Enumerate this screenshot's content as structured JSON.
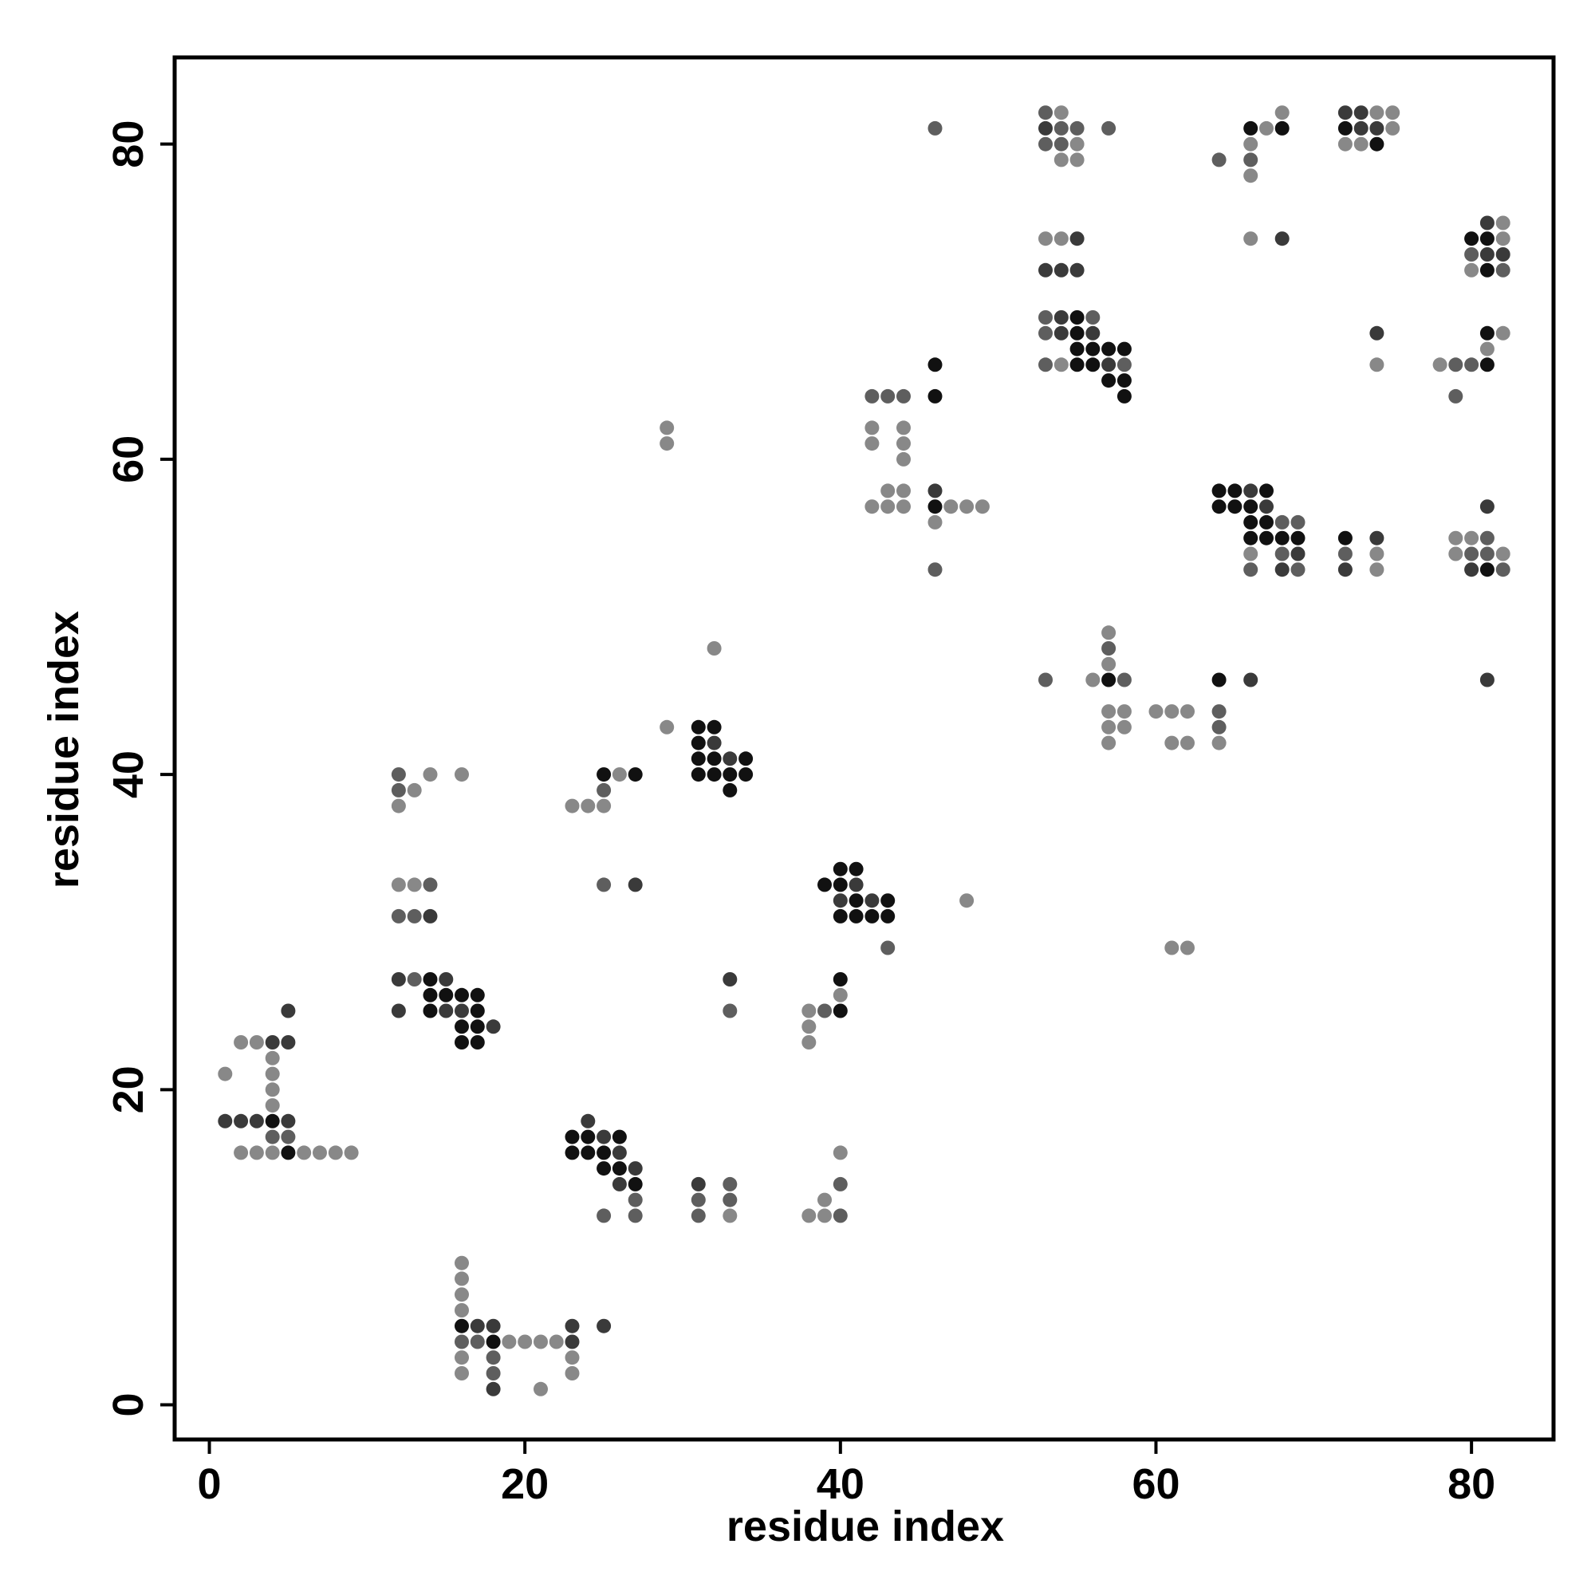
{
  "chart_data": {
    "type": "scatter",
    "title": "",
    "xlabel": "residue index",
    "ylabel": "residue index",
    "xlim": [
      -2.2,
      85.2
    ],
    "ylim": [
      -2.2,
      85.5
    ],
    "xticks": [
      0,
      20,
      40,
      60,
      80
    ],
    "yticks": [
      0,
      20,
      40,
      60,
      80
    ],
    "grid": false,
    "legend": "none",
    "colors": {
      "very_dark": "#111111",
      "dark": "#3a3a3a",
      "medium": "#5e5e5e",
      "light": "#888888"
    },
    "points": [
      [
        1,
        21,
        3
      ],
      [
        1,
        18,
        1
      ],
      [
        2,
        23,
        3
      ],
      [
        2,
        18,
        1
      ],
      [
        2,
        16,
        3
      ],
      [
        3,
        23,
        3
      ],
      [
        3,
        18,
        1
      ],
      [
        3,
        16,
        3
      ],
      [
        4,
        23,
        1
      ],
      [
        4,
        22,
        3
      ],
      [
        4,
        21,
        3
      ],
      [
        4,
        20,
        3
      ],
      [
        4,
        19,
        3
      ],
      [
        4,
        18,
        0
      ],
      [
        4,
        17,
        2
      ],
      [
        4,
        16,
        3
      ],
      [
        5,
        25,
        1
      ],
      [
        5,
        23,
        1
      ],
      [
        5,
        18,
        1
      ],
      [
        5,
        17,
        2
      ],
      [
        5,
        16,
        0
      ],
      [
        6,
        16,
        3
      ],
      [
        7,
        16,
        3
      ],
      [
        8,
        16,
        3
      ],
      [
        9,
        16,
        3
      ],
      [
        12,
        40,
        2
      ],
      [
        12,
        39,
        2
      ],
      [
        12,
        38,
        3
      ],
      [
        12,
        33,
        3
      ],
      [
        12,
        31,
        2
      ],
      [
        12,
        27,
        1
      ],
      [
        12,
        25,
        1
      ],
      [
        13,
        39,
        3
      ],
      [
        13,
        33,
        3
      ],
      [
        13,
        31,
        2
      ],
      [
        13,
        27,
        2
      ],
      [
        14,
        40,
        3
      ],
      [
        14,
        33,
        2
      ],
      [
        14,
        31,
        1
      ],
      [
        14,
        27,
        0
      ],
      [
        14,
        26,
        0
      ],
      [
        14,
        25,
        0
      ],
      [
        15,
        27,
        1
      ],
      [
        15,
        26,
        0
      ],
      [
        15,
        25,
        1
      ],
      [
        16,
        40,
        3
      ],
      [
        16,
        26,
        0
      ],
      [
        16,
        25,
        1
      ],
      [
        16,
        24,
        0
      ],
      [
        16,
        23,
        0
      ],
      [
        16,
        9,
        3
      ],
      [
        16,
        8,
        3
      ],
      [
        16,
        7,
        3
      ],
      [
        16,
        6,
        3
      ],
      [
        16,
        5,
        0
      ],
      [
        16,
        4,
        2
      ],
      [
        16,
        3,
        3
      ],
      [
        16,
        2,
        3
      ],
      [
        17,
        26,
        0
      ],
      [
        17,
        25,
        0
      ],
      [
        17,
        24,
        0
      ],
      [
        17,
        23,
        0
      ],
      [
        17,
        5,
        1
      ],
      [
        17,
        4,
        2
      ],
      [
        18,
        24,
        1
      ],
      [
        18,
        5,
        1
      ],
      [
        18,
        4,
        0
      ],
      [
        18,
        3,
        2
      ],
      [
        18,
        2,
        2
      ],
      [
        18,
        1,
        1
      ],
      [
        19,
        4,
        3
      ],
      [
        20,
        4,
        3
      ],
      [
        21,
        4,
        3
      ],
      [
        21,
        1,
        3
      ],
      [
        22,
        4,
        3
      ],
      [
        23,
        38,
        3
      ],
      [
        23,
        17,
        0
      ],
      [
        23,
        16,
        0
      ],
      [
        23,
        5,
        1
      ],
      [
        23,
        4,
        1
      ],
      [
        23,
        3,
        3
      ],
      [
        23,
        2,
        3
      ],
      [
        24,
        38,
        3
      ],
      [
        24,
        18,
        1
      ],
      [
        24,
        17,
        0
      ],
      [
        24,
        16,
        0
      ],
      [
        25,
        40,
        0
      ],
      [
        25,
        39,
        2
      ],
      [
        25,
        38,
        3
      ],
      [
        25,
        33,
        2
      ],
      [
        25,
        17,
        1
      ],
      [
        25,
        16,
        0
      ],
      [
        25,
        15,
        0
      ],
      [
        25,
        12,
        2
      ],
      [
        25,
        5,
        1
      ],
      [
        26,
        40,
        3
      ],
      [
        26,
        17,
        0
      ],
      [
        26,
        16,
        1
      ],
      [
        26,
        15,
        0
      ],
      [
        26,
        14,
        1
      ],
      [
        27,
        40,
        0
      ],
      [
        27,
        33,
        1
      ],
      [
        27,
        15,
        1
      ],
      [
        27,
        14,
        0
      ],
      [
        27,
        13,
        2
      ],
      [
        27,
        12,
        2
      ],
      [
        29,
        62,
        3
      ],
      [
        29,
        61,
        3
      ],
      [
        29,
        43,
        3
      ],
      [
        31,
        43,
        0
      ],
      [
        31,
        42,
        0
      ],
      [
        31,
        41,
        0
      ],
      [
        31,
        40,
        0
      ],
      [
        31,
        14,
        1
      ],
      [
        31,
        13,
        2
      ],
      [
        31,
        12,
        2
      ],
      [
        32,
        48,
        3
      ],
      [
        32,
        43,
        0
      ],
      [
        32,
        42,
        1
      ],
      [
        32,
        41,
        0
      ],
      [
        32,
        40,
        0
      ],
      [
        33,
        41,
        1
      ],
      [
        33,
        40,
        0
      ],
      [
        33,
        39,
        0
      ],
      [
        33,
        27,
        1
      ],
      [
        33,
        25,
        2
      ],
      [
        33,
        14,
        2
      ],
      [
        33,
        13,
        2
      ],
      [
        33,
        12,
        3
      ],
      [
        34,
        41,
        0
      ],
      [
        34,
        40,
        0
      ],
      [
        38,
        25,
        3
      ],
      [
        38,
        24,
        3
      ],
      [
        38,
        23,
        3
      ],
      [
        38,
        12,
        3
      ],
      [
        39,
        33,
        0
      ],
      [
        39,
        25,
        2
      ],
      [
        39,
        13,
        3
      ],
      [
        39,
        12,
        3
      ],
      [
        40,
        34,
        0
      ],
      [
        40,
        33,
        0
      ],
      [
        40,
        32,
        1
      ],
      [
        40,
        31,
        0
      ],
      [
        40,
        27,
        0
      ],
      [
        40,
        26,
        3
      ],
      [
        40,
        25,
        0
      ],
      [
        40,
        16,
        3
      ],
      [
        40,
        14,
        2
      ],
      [
        40,
        12,
        2
      ],
      [
        41,
        34,
        0
      ],
      [
        41,
        33,
        1
      ],
      [
        41,
        32,
        0
      ],
      [
        41,
        31,
        0
      ],
      [
        42,
        64,
        2
      ],
      [
        42,
        62,
        3
      ],
      [
        42,
        61,
        3
      ],
      [
        42,
        57,
        3
      ],
      [
        42,
        32,
        1
      ],
      [
        42,
        31,
        0
      ],
      [
        43,
        64,
        2
      ],
      [
        43,
        58,
        3
      ],
      [
        43,
        57,
        3
      ],
      [
        43,
        32,
        0
      ],
      [
        43,
        31,
        0
      ],
      [
        43,
        29,
        2
      ],
      [
        44,
        64,
        2
      ],
      [
        44,
        62,
        3
      ],
      [
        44,
        61,
        3
      ],
      [
        44,
        60,
        3
      ],
      [
        44,
        58,
        3
      ],
      [
        44,
        57,
        3
      ],
      [
        46,
        81,
        2
      ],
      [
        46,
        66,
        0
      ],
      [
        46,
        64,
        0
      ],
      [
        46,
        58,
        1
      ],
      [
        46,
        57,
        0
      ],
      [
        46,
        56,
        3
      ],
      [
        46,
        53,
        2
      ],
      [
        47,
        57,
        3
      ],
      [
        48,
        57,
        3
      ],
      [
        48,
        32,
        3
      ],
      [
        49,
        57,
        3
      ],
      [
        53,
        82,
        2
      ],
      [
        53,
        81,
        1
      ],
      [
        53,
        80,
        2
      ],
      [
        53,
        74,
        3
      ],
      [
        53,
        72,
        1
      ],
      [
        53,
        69,
        2
      ],
      [
        53,
        68,
        2
      ],
      [
        53,
        66,
        2
      ],
      [
        53,
        46,
        2
      ],
      [
        54,
        82,
        3
      ],
      [
        54,
        81,
        2
      ],
      [
        54,
        80,
        2
      ],
      [
        54,
        79,
        3
      ],
      [
        54,
        74,
        3
      ],
      [
        54,
        72,
        1
      ],
      [
        54,
        69,
        1
      ],
      [
        54,
        68,
        1
      ],
      [
        54,
        66,
        3
      ],
      [
        55,
        81,
        2
      ],
      [
        55,
        80,
        3
      ],
      [
        55,
        79,
        3
      ],
      [
        55,
        74,
        1
      ],
      [
        55,
        72,
        1
      ],
      [
        55,
        69,
        0
      ],
      [
        55,
        68,
        0
      ],
      [
        55,
        67,
        0
      ],
      [
        55,
        66,
        0
      ],
      [
        56,
        69,
        2
      ],
      [
        56,
        68,
        1
      ],
      [
        56,
        67,
        0
      ],
      [
        56,
        66,
        0
      ],
      [
        56,
        46,
        3
      ],
      [
        57,
        81,
        2
      ],
      [
        57,
        67,
        0
      ],
      [
        57,
        66,
        1
      ],
      [
        57,
        65,
        0
      ],
      [
        57,
        49,
        3
      ],
      [
        57,
        48,
        2
      ],
      [
        57,
        47,
        3
      ],
      [
        57,
        46,
        0
      ],
      [
        57,
        44,
        3
      ],
      [
        57,
        43,
        3
      ],
      [
        57,
        42,
        3
      ],
      [
        58,
        67,
        0
      ],
      [
        58,
        66,
        2
      ],
      [
        58,
        65,
        0
      ],
      [
        58,
        64,
        0
      ],
      [
        58,
        46,
        2
      ],
      [
        58,
        44,
        3
      ],
      [
        58,
        43,
        3
      ],
      [
        60,
        44,
        3
      ],
      [
        61,
        44,
        3
      ],
      [
        61,
        42,
        3
      ],
      [
        61,
        29,
        3
      ],
      [
        62,
        44,
        3
      ],
      [
        62,
        42,
        3
      ],
      [
        62,
        29,
        3
      ],
      [
        64,
        79,
        2
      ],
      [
        64,
        58,
        0
      ],
      [
        64,
        57,
        0
      ],
      [
        64,
        46,
        0
      ],
      [
        64,
        44,
        2
      ],
      [
        64,
        43,
        2
      ],
      [
        64,
        42,
        3
      ],
      [
        65,
        58,
        0
      ],
      [
        65,
        57,
        0
      ],
      [
        66,
        81,
        0
      ],
      [
        66,
        80,
        3
      ],
      [
        66,
        79,
        2
      ],
      [
        66,
        78,
        3
      ],
      [
        66,
        74,
        3
      ],
      [
        66,
        58,
        1
      ],
      [
        66,
        57,
        0
      ],
      [
        66,
        56,
        0
      ],
      [
        66,
        55,
        0
      ],
      [
        66,
        54,
        3
      ],
      [
        66,
        53,
        2
      ],
      [
        66,
        46,
        1
      ],
      [
        67,
        81,
        3
      ],
      [
        67,
        58,
        0
      ],
      [
        67,
        57,
        1
      ],
      [
        67,
        56,
        0
      ],
      [
        67,
        55,
        0
      ],
      [
        68,
        82,
        3
      ],
      [
        68,
        81,
        0
      ],
      [
        68,
        74,
        1
      ],
      [
        68,
        56,
        2
      ],
      [
        68,
        55,
        0
      ],
      [
        68,
        54,
        2
      ],
      [
        68,
        53,
        1
      ],
      [
        69,
        56,
        2
      ],
      [
        69,
        55,
        0
      ],
      [
        69,
        54,
        1
      ],
      [
        69,
        53,
        2
      ],
      [
        72,
        82,
        1
      ],
      [
        72,
        81,
        0
      ],
      [
        72,
        80,
        3
      ],
      [
        72,
        55,
        0
      ],
      [
        72,
        54,
        2
      ],
      [
        72,
        53,
        1
      ],
      [
        73,
        82,
        1
      ],
      [
        73,
        81,
        1
      ],
      [
        73,
        80,
        3
      ],
      [
        74,
        82,
        3
      ],
      [
        74,
        81,
        1
      ],
      [
        74,
        80,
        0
      ],
      [
        74,
        68,
        1
      ],
      [
        74,
        66,
        3
      ],
      [
        74,
        55,
        1
      ],
      [
        74,
        54,
        3
      ],
      [
        74,
        53,
        3
      ],
      [
        75,
        82,
        3
      ],
      [
        75,
        81,
        3
      ],
      [
        78,
        66,
        3
      ],
      [
        79,
        66,
        2
      ],
      [
        79,
        64,
        2
      ],
      [
        79,
        55,
        3
      ],
      [
        79,
        54,
        3
      ],
      [
        80,
        74,
        0
      ],
      [
        80,
        73,
        2
      ],
      [
        80,
        72,
        3
      ],
      [
        80,
        66,
        2
      ],
      [
        80,
        55,
        3
      ],
      [
        80,
        54,
        2
      ],
      [
        80,
        53,
        1
      ],
      [
        81,
        75,
        1
      ],
      [
        81,
        74,
        0
      ],
      [
        81,
        73,
        1
      ],
      [
        81,
        72,
        0
      ],
      [
        81,
        68,
        0
      ],
      [
        81,
        67,
        3
      ],
      [
        81,
        66,
        0
      ],
      [
        81,
        57,
        1
      ],
      [
        81,
        55,
        2
      ],
      [
        81,
        54,
        2
      ],
      [
        81,
        53,
        0
      ],
      [
        81,
        46,
        1
      ],
      [
        82,
        75,
        3
      ],
      [
        82,
        74,
        3
      ],
      [
        82,
        73,
        1
      ],
      [
        82,
        72,
        2
      ],
      [
        82,
        68,
        3
      ],
      [
        82,
        54,
        3
      ],
      [
        82,
        53,
        2
      ]
    ]
  }
}
